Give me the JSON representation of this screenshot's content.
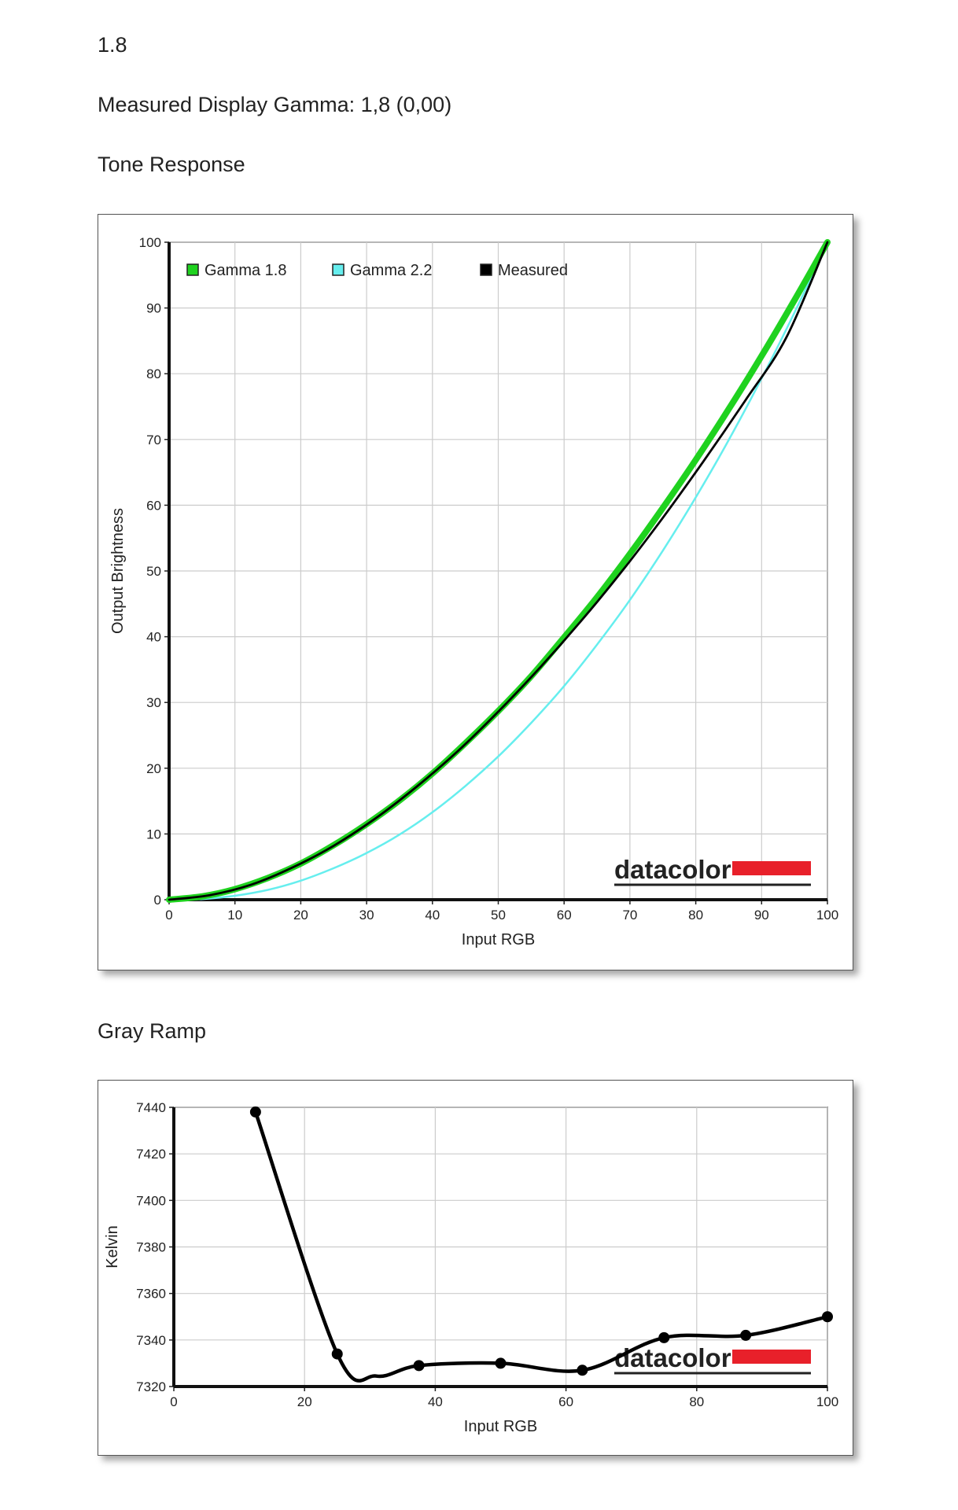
{
  "page": {
    "gamma_target": "1.8",
    "measured_line": "Measured Display Gamma: 1,8 (0,00)",
    "tone_heading": "Tone Response",
    "gray_heading": "Gray Ramp",
    "brand_logo": "datacolor"
  },
  "colors": {
    "gamma18": "#1fd21f",
    "gamma22": "#66eeee",
    "measured": "#000000",
    "logo_red": "#e8202a",
    "grid": "#cccccc"
  },
  "chart_data": [
    {
      "type": "line",
      "title": "Tone Response",
      "xlabel": "Input RGB",
      "ylabel": "Output Brightness",
      "xlim": [
        0,
        100
      ],
      "ylim": [
        0,
        100
      ],
      "x_ticks": [
        "0",
        "10",
        "20",
        "30",
        "40",
        "50",
        "60",
        "70",
        "80",
        "90",
        "100"
      ],
      "y_ticks": [
        "0",
        "10",
        "20",
        "30",
        "40",
        "50",
        "60",
        "70",
        "80",
        "90",
        "100"
      ],
      "grid": true,
      "legend": "top-left",
      "series": [
        {
          "name": "Gamma 1.8",
          "color": "#1fd21f",
          "x": [
            0,
            5,
            10,
            15,
            20,
            25,
            30,
            35,
            40,
            45,
            50,
            55,
            60,
            65,
            70,
            75,
            80,
            85,
            90,
            95,
            100
          ],
          "y": [
            0,
            0.5,
            1.6,
            3.3,
            5.5,
            8.3,
            11.5,
            15.1,
            19.2,
            23.8,
            28.7,
            34.0,
            39.9,
            46.0,
            52.6,
            59.6,
            66.9,
            74.6,
            82.7,
            91.2,
            100
          ]
        },
        {
          "name": "Gamma 2.2",
          "color": "#66eeee",
          "x": [
            0,
            5,
            10,
            15,
            20,
            25,
            30,
            35,
            40,
            45,
            50,
            55,
            60,
            65,
            70,
            75,
            80,
            85,
            90,
            95,
            100
          ],
          "y": [
            0,
            0.1,
            0.6,
            1.5,
            2.9,
            4.8,
            7.1,
            9.9,
            13.3,
            17.3,
            21.8,
            26.9,
            32.5,
            38.8,
            45.6,
            53.1,
            61.2,
            69.9,
            79.3,
            89.3,
            100
          ]
        },
        {
          "name": "Measured",
          "color": "#000000",
          "x": [
            0,
            6.25,
            12.5,
            18.75,
            25,
            31.25,
            37.5,
            43.75,
            50,
            56.25,
            62.5,
            68.75,
            75,
            81.25,
            87.5,
            93.75,
            100
          ],
          "y": [
            0,
            0.7,
            2.3,
            4.9,
            8.2,
            12.3,
            17.1,
            22.5,
            28.6,
            35.2,
            42.3,
            49.9,
            58.1,
            66.8,
            75.9,
            85.5,
            100
          ]
        }
      ]
    },
    {
      "type": "line",
      "title": "Gray Ramp",
      "xlabel": "Input RGB",
      "ylabel": "Kelvin",
      "xlim": [
        0,
        100
      ],
      "ylim": [
        7320,
        7440
      ],
      "x_ticks": [
        "0",
        "20",
        "40",
        "60",
        "80",
        "100"
      ],
      "y_ticks": [
        "7320",
        "7340",
        "7360",
        "7380",
        "7400",
        "7420",
        "7440"
      ],
      "grid": true,
      "series": [
        {
          "name": "Measured",
          "color": "#000000",
          "x": [
            12.5,
            25,
            37.5,
            50,
            62.5,
            75,
            87.5,
            100
          ],
          "y": [
            7438,
            7334,
            7329,
            7330,
            7327,
            7341,
            7342,
            7350
          ]
        }
      ]
    }
  ]
}
